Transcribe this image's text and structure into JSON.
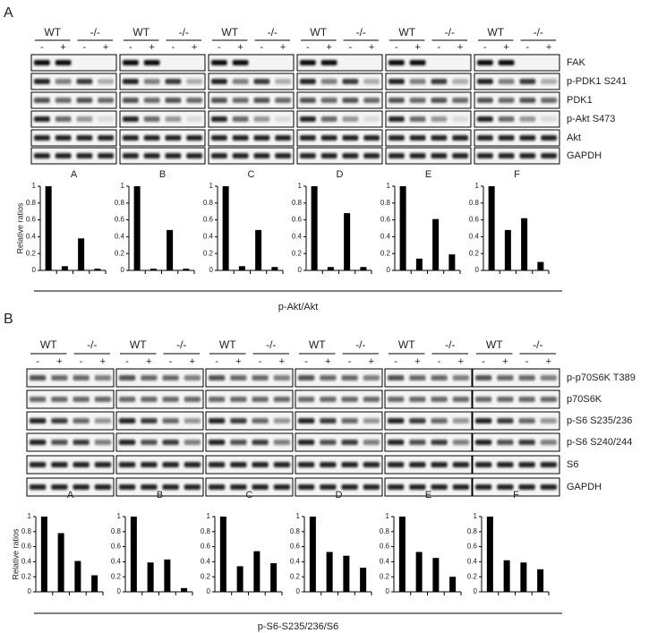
{
  "panels": [
    {
      "letter": "A",
      "groups": [
        "WT",
        "-/-"
      ],
      "treatments": [
        "-",
        "+",
        "-",
        "+"
      ],
      "blots": [
        "FAK",
        "p-PDK1 S241",
        "PDK1",
        "p-Akt S473",
        "Akt",
        "GAPDH"
      ],
      "samples": [
        "A",
        "B",
        "C",
        "D",
        "E",
        "F"
      ],
      "y_label": "Relative ratios",
      "caption": "p-Akt/Akt"
    },
    {
      "letter": "B",
      "groups": [
        "WT",
        "-/-"
      ],
      "treatments": [
        "-",
        "+",
        "-",
        "+"
      ],
      "blots": [
        "p-p70S6K T389",
        "p70S6K",
        "p-S6 S235/236",
        "p-S6 S240/244",
        "S6",
        "GAPDH"
      ],
      "samples": [
        "A",
        "B",
        "C",
        "D",
        "E",
        "F"
      ],
      "y_label": "Relative ratios",
      "caption": "p-S6-S235/236/S6"
    }
  ],
  "chart_data": [
    {
      "type": "bar",
      "categories": [
        null,
        null,
        null,
        null
      ],
      "values": [
        1,
        0.05,
        0.38,
        0.02
      ],
      "color": "#000000",
      "ylim": [
        0,
        1
      ],
      "yticks": [
        0,
        0.2,
        0.4,
        0.6,
        0.8,
        1
      ]
    },
    {
      "type": "bar",
      "categories": [
        null,
        null,
        null,
        null
      ],
      "values": [
        1,
        0.02,
        0.48,
        0.02
      ],
      "color": "#000000",
      "ylim": [
        0,
        1
      ],
      "yticks": [
        0,
        0.2,
        0.4,
        0.6,
        0.8,
        1
      ]
    },
    {
      "type": "bar",
      "categories": [
        null,
        null,
        null,
        null
      ],
      "values": [
        1,
        0.05,
        0.48,
        0.04
      ],
      "color": "#000000",
      "ylim": [
        0,
        1
      ],
      "yticks": [
        0,
        0.2,
        0.4,
        0.6,
        0.8,
        1
      ]
    },
    {
      "type": "bar",
      "categories": [
        null,
        null,
        null,
        null
      ],
      "values": [
        1,
        0.04,
        0.68,
        0.04
      ],
      "color": "#000000",
      "ylim": [
        0,
        1
      ],
      "yticks": [
        0,
        0.2,
        0.4,
        0.6,
        0.8,
        1
      ]
    },
    {
      "type": "bar",
      "categories": [
        null,
        null,
        null,
        null
      ],
      "values": [
        1,
        0.14,
        0.61,
        0.19
      ],
      "color": "#000000",
      "ylim": [
        0,
        1
      ],
      "yticks": [
        0,
        0.2,
        0.4,
        0.6,
        0.8,
        1
      ]
    },
    {
      "type": "bar",
      "categories": [
        null,
        null,
        null,
        null
      ],
      "values": [
        1,
        0.48,
        0.62,
        0.1
      ],
      "color": "#000000",
      "ylim": [
        0,
        1
      ],
      "yticks": [
        0,
        0.2,
        0.4,
        0.6,
        0.8,
        1
      ]
    },
    {
      "type": "bar",
      "categories": [
        null,
        null,
        null,
        null
      ],
      "values": [
        1,
        0.78,
        0.41,
        0.22
      ],
      "color": "#000000",
      "ylim": [
        0,
        1
      ],
      "yticks": [
        0,
        0.2,
        0.4,
        0.6,
        0.8,
        1
      ]
    },
    {
      "type": "bar",
      "categories": [
        null,
        null,
        null,
        null
      ],
      "values": [
        1,
        0.39,
        0.43,
        0.05
      ],
      "color": "#000000",
      "ylim": [
        0,
        1
      ],
      "yticks": [
        0,
        0.2,
        0.4,
        0.6,
        0.8,
        1
      ]
    },
    {
      "type": "bar",
      "categories": [
        null,
        null,
        null,
        null
      ],
      "values": [
        1,
        0.34,
        0.54,
        0.38
      ],
      "color": "#000000",
      "ylim": [
        0,
        1
      ],
      "yticks": [
        0,
        0.2,
        0.4,
        0.6,
        0.8,
        1
      ]
    },
    {
      "type": "bar",
      "categories": [
        null,
        null,
        null,
        null
      ],
      "values": [
        1,
        0.53,
        0.48,
        0.32
      ],
      "color": "#000000",
      "ylim": [
        0,
        1
      ],
      "yticks": [
        0,
        0.2,
        0.4,
        0.6,
        0.8,
        1
      ]
    },
    {
      "type": "bar",
      "categories": [
        null,
        null,
        null,
        null
      ],
      "values": [
        1,
        0.53,
        0.45,
        0.2
      ],
      "color": "#000000",
      "ylim": [
        0,
        1
      ],
      "yticks": [
        0,
        0.2,
        0.4,
        0.6,
        0.8,
        1
      ]
    },
    {
      "type": "bar",
      "categories": [
        null,
        null,
        null,
        null
      ],
      "values": [
        1,
        0.42,
        0.39,
        0.3
      ],
      "color": "#000000",
      "ylim": [
        0,
        1
      ],
      "yticks": [
        0,
        0.2,
        0.4,
        0.6,
        0.8,
        1
      ]
    }
  ]
}
